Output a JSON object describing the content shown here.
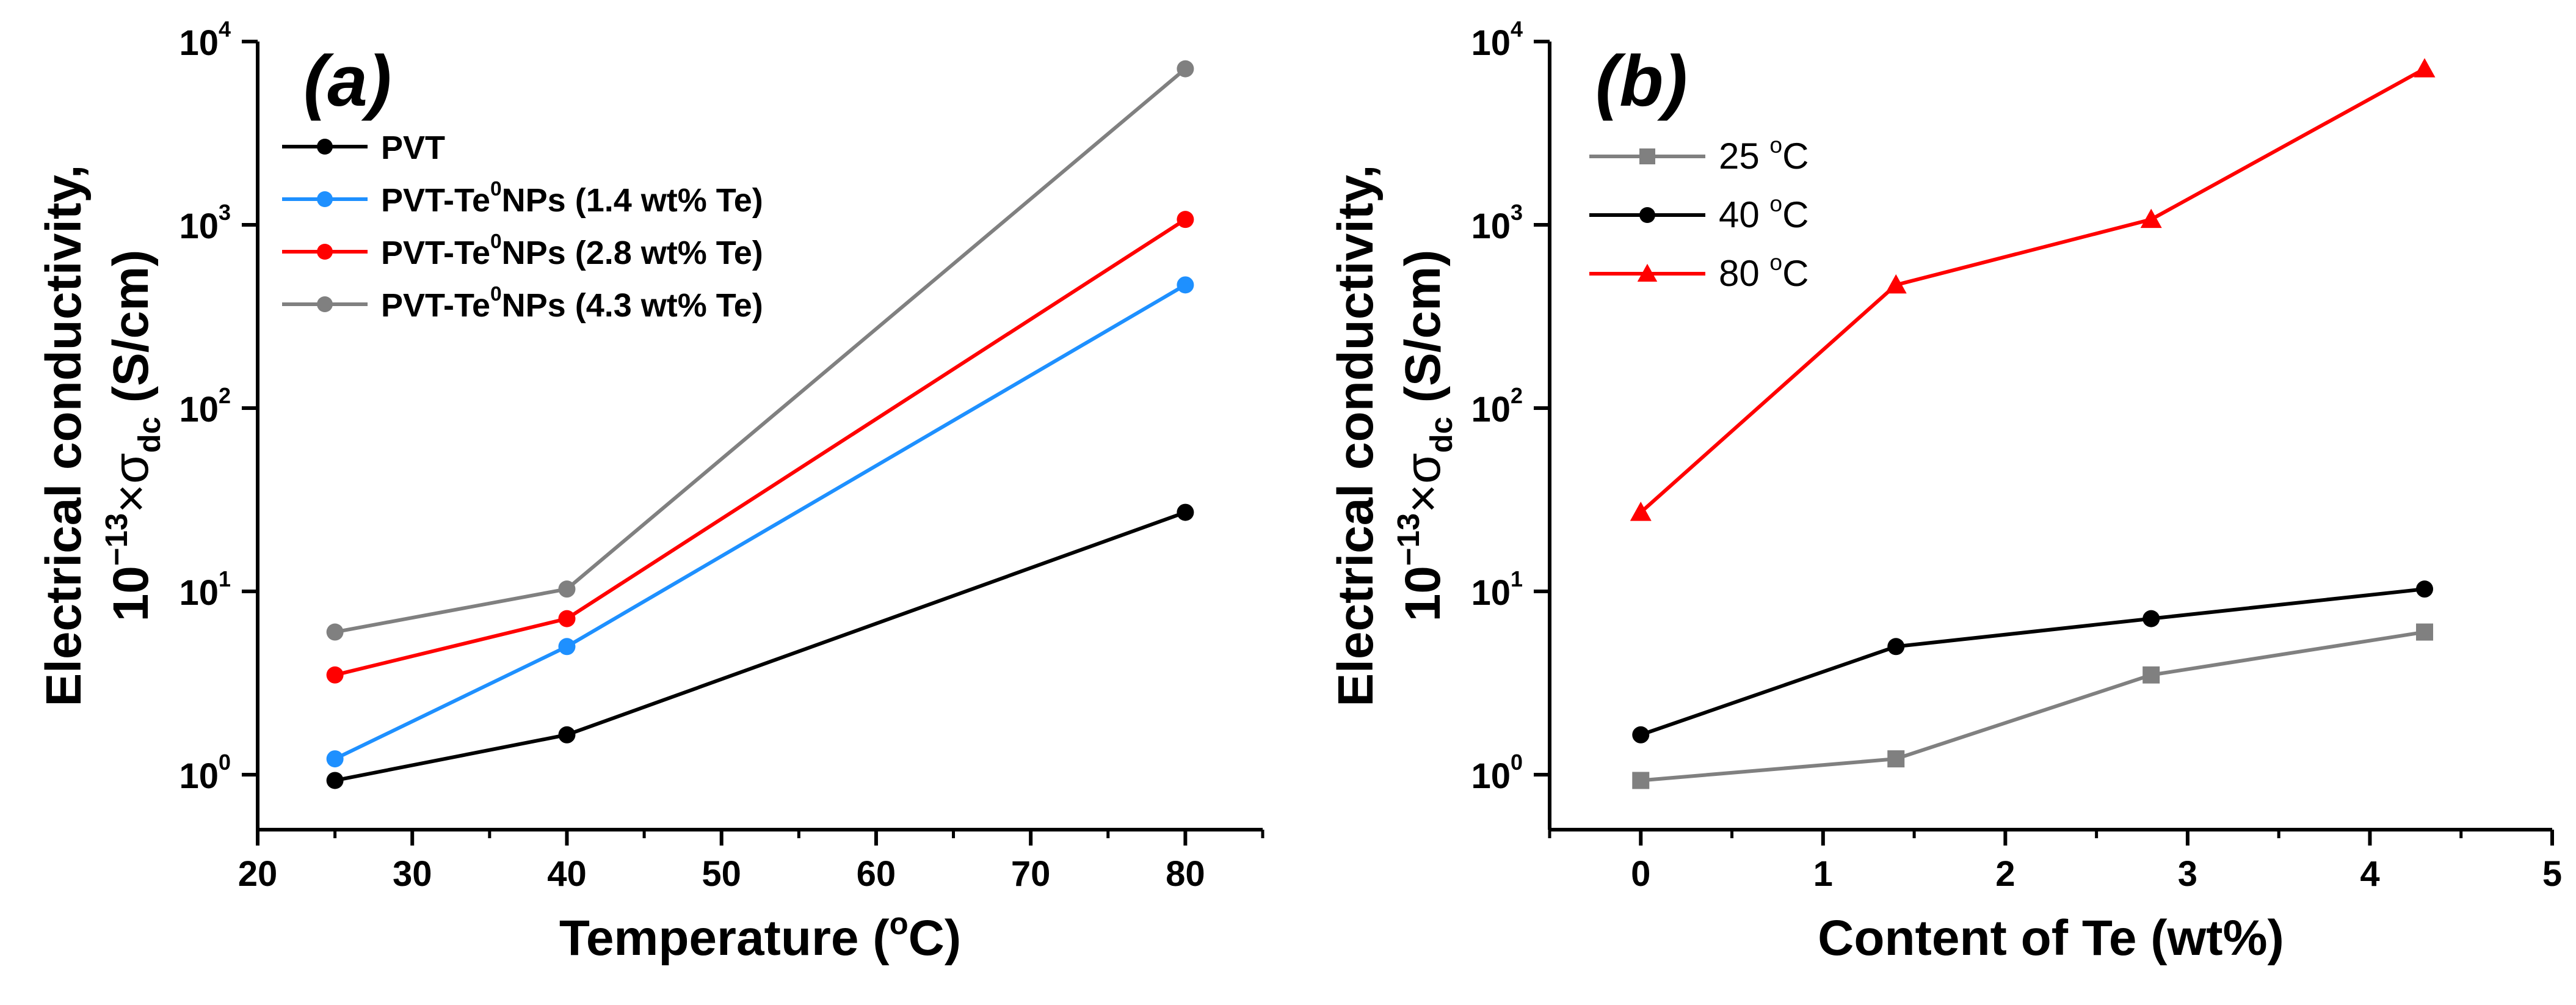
{
  "chart_data": [
    {
      "type": "line",
      "panel_label": "(a)",
      "xlabel": "Temperature (°C)",
      "xlabel_parts": {
        "main": "Temperature (",
        "sup": "o",
        "end": "C)"
      },
      "ylabel": {
        "line1": "Electrical conductivity,",
        "line2_prefix": "10",
        "line2_exp": "−13",
        "line2_times": "×σ",
        "line2_sub": "dc",
        "line2_units": " (S/cm)"
      },
      "xlim": [
        20,
        85
      ],
      "ylim_log10": [
        -0.3,
        4
      ],
      "x_ticks": [
        20,
        30,
        40,
        50,
        60,
        70,
        80
      ],
      "y_ticks": [
        {
          "base": "10",
          "exp": "0",
          "value": 1
        },
        {
          "base": "10",
          "exp": "1",
          "value": 10
        },
        {
          "base": "10",
          "exp": "2",
          "value": 100
        },
        {
          "base": "10",
          "exp": "3",
          "value": 1000
        },
        {
          "base": "10",
          "exp": "4",
          "value": 10000
        }
      ],
      "legend_position": "top-left",
      "series": [
        {
          "name": "PVT",
          "legend": {
            "main": "PVT",
            "sup": "",
            "rest": ""
          },
          "color": "#000000",
          "marker": "circle",
          "x": [
            25,
            40,
            80
          ],
          "y": [
            0.93,
            1.65,
            27
          ]
        },
        {
          "name": "PVT-Te0NPs (1.4 wt% Te)",
          "legend": {
            "main": "PVT-Te",
            "sup": "0",
            "rest": "NPs (1.4 wt% Te)"
          },
          "color": "#1e90ff",
          "marker": "circle",
          "x": [
            25,
            40,
            80
          ],
          "y": [
            1.22,
            5.0,
            470
          ]
        },
        {
          "name": "PVT-Te0NPs (2.8 wt% Te)",
          "legend": {
            "main": "PVT-Te",
            "sup": "0",
            "rest": "NPs (2.8 wt% Te)"
          },
          "color": "#ff0000",
          "marker": "circle",
          "x": [
            25,
            40,
            80
          ],
          "y": [
            3.5,
            7.1,
            1070
          ]
        },
        {
          "name": "PVT-Te0NPs (4.3 wt% Te)",
          "legend": {
            "main": "PVT-Te",
            "sup": "0",
            "rest": "NPs (4.3 wt% Te)"
          },
          "color": "#808080",
          "marker": "circle",
          "x": [
            25,
            40,
            80
          ],
          "y": [
            6.0,
            10.3,
            7100
          ]
        }
      ]
    },
    {
      "type": "line",
      "panel_label": "(b)",
      "xlabel": "Content of Te (wt%)",
      "ylabel": {
        "line1": "Electrical conductivity,",
        "line2_prefix": "10",
        "line2_exp": "−13",
        "line2_times": "×σ",
        "line2_sub": "dc",
        "line2_units": " (S/cm)"
      },
      "xlim": [
        -0.5,
        5
      ],
      "ylim_log10": [
        -0.3,
        4
      ],
      "x_ticks": [
        0,
        1,
        2,
        3,
        4,
        5
      ],
      "y_ticks": [
        {
          "base": "10",
          "exp": "0",
          "value": 1
        },
        {
          "base": "10",
          "exp": "1",
          "value": 10
        },
        {
          "base": "10",
          "exp": "2",
          "value": 100
        },
        {
          "base": "10",
          "exp": "3",
          "value": 1000
        },
        {
          "base": "10",
          "exp": "4",
          "value": 10000
        }
      ],
      "legend_position": "top-left",
      "series": [
        {
          "name": "25 oC",
          "legend": {
            "main": "25 ",
            "sup": "o",
            "rest": "C"
          },
          "color": "#808080",
          "marker": "square",
          "x": [
            0,
            1.4,
            2.8,
            4.3
          ],
          "y": [
            0.93,
            1.22,
            3.5,
            6.0
          ]
        },
        {
          "name": "40 oC",
          "legend": {
            "main": "40 ",
            "sup": "o",
            "rest": "C"
          },
          "color": "#000000",
          "marker": "circle",
          "x": [
            0,
            1.4,
            2.8,
            4.3
          ],
          "y": [
            1.65,
            5.0,
            7.1,
            10.3
          ]
        },
        {
          "name": "80 oC",
          "legend": {
            "main": "80 ",
            "sup": "o",
            "rest": "C"
          },
          "color": "#ff0000",
          "marker": "triangle",
          "x": [
            0,
            1.4,
            2.8,
            4.3
          ],
          "y": [
            27,
            470,
            1070,
            7100
          ]
        }
      ]
    }
  ]
}
